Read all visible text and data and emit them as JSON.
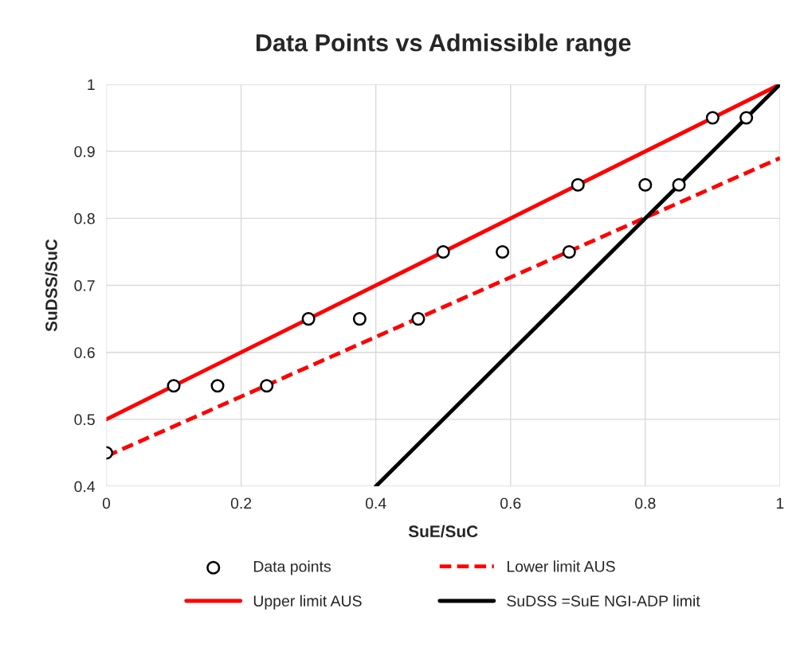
{
  "chart_data": {
    "type": "line",
    "title": "Data Points vs Admissible range",
    "xlabel": "SuE/SuC",
    "ylabel": "SuDSS/SuC",
    "xlim": [
      0,
      1
    ],
    "xticks": [
      0,
      0.2,
      0.4,
      0.6,
      0.8,
      1
    ],
    "ylim": [
      0.4,
      1
    ],
    "yticks": [
      0.4,
      0.5,
      0.6,
      0.7,
      0.8,
      0.9,
      1
    ],
    "grid": true,
    "legend": "bottom",
    "series": [
      {
        "name": "Data points",
        "type": "scatter",
        "marker": "circle",
        "color": "#ffffff",
        "x": [
          0,
          0.1,
          0.165,
          0.238,
          0.3,
          0.376,
          0.463,
          0.5,
          0.588,
          0.687,
          0.7,
          0.8,
          0.85,
          0.9,
          0.95
        ],
        "values": [
          0.45,
          0.55,
          0.55,
          0.55,
          0.65,
          0.65,
          0.65,
          0.75,
          0.75,
          0.75,
          0.85,
          0.85,
          0.85,
          0.95,
          0.95
        ]
      },
      {
        "name": "Lower limit AUS",
        "line_style": "dashed",
        "color": "#ff0000",
        "x": [
          0,
          1
        ],
        "values": [
          0.445,
          0.89
        ]
      },
      {
        "name": "Upper limit AUS",
        "line_style": "solid",
        "color": "#ff0000",
        "x": [
          0,
          1
        ],
        "values": [
          0.5,
          1
        ]
      },
      {
        "name": "SuDSS =SuE NGI-ADP limit",
        "line_style": "solid",
        "color": "#000000",
        "x": [
          0.4,
          1
        ],
        "values": [
          0.4,
          1
        ]
      }
    ]
  }
}
